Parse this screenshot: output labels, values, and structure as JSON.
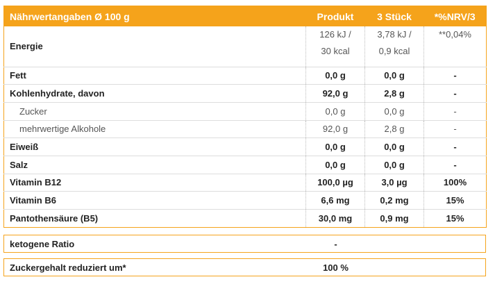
{
  "table": {
    "header": [
      "Nährwertangaben Ø 100 g",
      "Produkt",
      "3 Stück",
      "*%NRV/3"
    ],
    "rows": [
      {
        "label": "Energie",
        "cells": [
          [
            "126 kJ /",
            "30 kcal"
          ],
          [
            "3,78 kJ /",
            "0,9 kcal"
          ],
          [
            "**0,04%"
          ]
        ],
        "style": "energy"
      },
      {
        "label": "Fett",
        "cells": [
          "0,0 g",
          "0,0 g",
          "-"
        ],
        "style": "main"
      },
      {
        "label": "Kohlenhydrate, davon",
        "cells": [
          "92,0 g",
          "2,8 g",
          "-"
        ],
        "style": "main"
      },
      {
        "label": "Zucker",
        "cells": [
          "0,0 g",
          "0,0 g",
          "-"
        ],
        "style": "sub"
      },
      {
        "label": "mehrwertige Alkohole",
        "cells": [
          "92,0 g",
          "2,8 g",
          "-"
        ],
        "style": "sub"
      },
      {
        "label": "Eiweiß",
        "cells": [
          "0,0 g",
          "0,0 g",
          "-"
        ],
        "style": "main"
      },
      {
        "label": "Salz",
        "cells": [
          "0,0 g",
          "0,0 g",
          "-"
        ],
        "style": "main"
      },
      {
        "label": "Vitamin B12",
        "cells": [
          "100,0 µg",
          "3,0 µg",
          "100%"
        ],
        "style": "main"
      },
      {
        "label": "Vitamin B6",
        "cells": [
          "6,6 mg",
          "0,2 mg",
          "15%"
        ],
        "style": "main"
      },
      {
        "label": "Pantothensäure (B5)",
        "cells": [
          "30,0 mg",
          "0,9 mg",
          "15%"
        ],
        "style": "main"
      }
    ]
  },
  "extra": [
    {
      "label": "ketogene Ratio",
      "value": "-"
    },
    {
      "label": "Zuckergehalt reduziert um*",
      "value": "100 %"
    }
  ]
}
